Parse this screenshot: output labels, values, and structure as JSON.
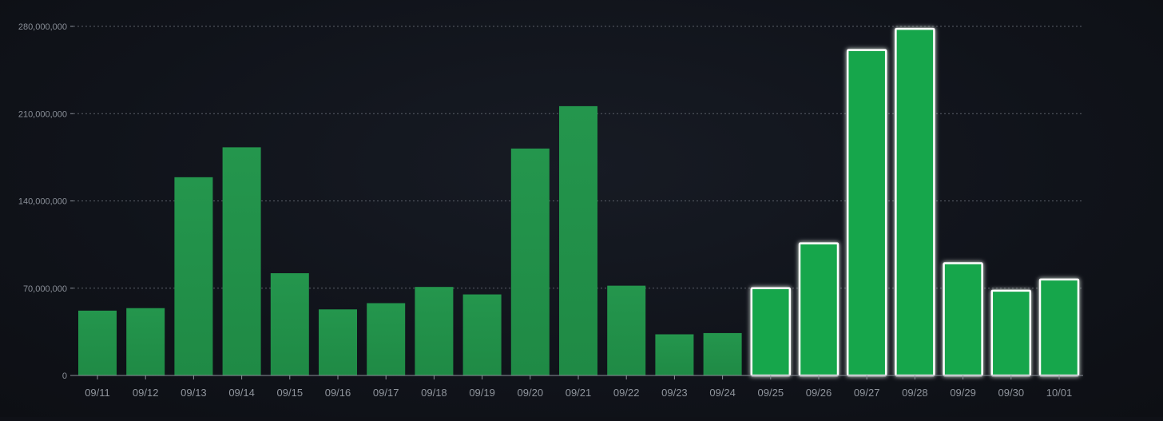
{
  "chart_data": {
    "type": "bar",
    "title": "",
    "xlabel": "",
    "ylabel": "",
    "categories": [
      "09/11",
      "09/12",
      "09/13",
      "09/14",
      "09/15",
      "09/16",
      "09/17",
      "09/18",
      "09/19",
      "09/20",
      "09/21",
      "09/22",
      "09/23",
      "09/24",
      "09/25",
      "09/26",
      "09/27",
      "09/28",
      "09/29",
      "09/30",
      "10/01"
    ],
    "values": [
      52000000,
      54000000,
      159000000,
      183000000,
      82000000,
      53000000,
      58000000,
      71000000,
      65000000,
      182000000,
      216000000,
      72000000,
      33000000,
      34000000,
      70000000,
      106000000,
      261000000,
      278000000,
      90000000,
      68000000,
      77000000
    ],
    "highlighted": [
      false,
      false,
      false,
      false,
      false,
      false,
      false,
      false,
      false,
      false,
      false,
      false,
      false,
      false,
      true,
      true,
      true,
      true,
      true,
      true,
      true
    ],
    "ylim": [
      0,
      280000000
    ],
    "yticks": [
      0,
      70000000,
      140000000,
      210000000,
      280000000
    ],
    "ytick_labels": [
      "0",
      "70,000,000",
      "140,000,000",
      "210,000,000",
      "280,000,000"
    ],
    "grid": true,
    "colors": {
      "bar": "#22914a",
      "bar_highlight": "#18a64b",
      "highlight_outline": "#ffffff",
      "background": "#10131a"
    }
  }
}
